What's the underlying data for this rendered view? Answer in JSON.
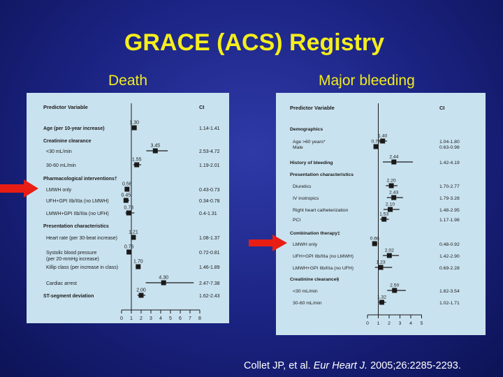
{
  "slide": {
    "title": "GRACE (ACS) Registry",
    "subtitle_left": "Death",
    "subtitle_right": "Major bleeding",
    "citation": {
      "authors": "Collet JP, et al.",
      "journal": "Eur Heart J.",
      "details": "2005;26:2285-2293."
    },
    "colors": {
      "background": "#1a2280",
      "title": "#f4ee1c",
      "panel": "#c9e2ef",
      "arrow": "#e81e14"
    }
  },
  "chart_data": [
    {
      "type": "forest",
      "column_headers": {
        "variable": "Predictor Variable",
        "ci": "CI"
      },
      "reference_line": 1,
      "xlim": [
        0,
        8
      ],
      "ticks": [
        "0",
        "1",
        "2",
        "3",
        "4",
        "5",
        "6",
        "7",
        "8"
      ],
      "rows": [
        {
          "label": "Age (per 10-year increase)",
          "bold": true,
          "value": 1.3,
          "value_label": "1.30",
          "ci_label": "1.14-1.41",
          "lo": 1.14,
          "hi": 1.41
        },
        {
          "label": "Creatinine clearance",
          "bold": true,
          "header": true
        },
        {
          "label": "<30 mL/min",
          "value": 3.45,
          "value_label": "3.45",
          "ci_label": "2.53-4.72",
          "lo": 2.53,
          "hi": 4.72
        },
        {
          "label": "30-60 mL/min",
          "value": 1.55,
          "value_label": "1.55",
          "ci_label": "1.19-2.01",
          "lo": 1.19,
          "hi": 2.01
        },
        {
          "label": "Pharmacological interventions†",
          "bold": true,
          "header": true
        },
        {
          "label": "LMWH only",
          "value": 0.56,
          "value_label": "0.56",
          "ci_label": "0.43-0.73",
          "lo": 0.43,
          "hi": 0.73
        },
        {
          "label": "UFH+GPI IIb/IIIa (no LMWH)",
          "value": 0.45,
          "value_label": "0.45",
          "ci_label": "0.34-0.78",
          "lo": 0.34,
          "hi": 0.78
        },
        {
          "label": "LMWH+GPI IIb/IIIa (no UFH)",
          "value": 0.73,
          "value_label": "0.73",
          "ci_label": "0.4-1.31",
          "lo": 0.4,
          "hi": 1.31
        },
        {
          "label": "Presentation characteristics",
          "bold": true,
          "header": true
        },
        {
          "label": "Heart rate (per 30-beat increase)",
          "value": 1.21,
          "value_label": "1.21",
          "ci_label": "1.08-1.37",
          "lo": 1.08,
          "hi": 1.37
        },
        {
          "label": "Systolic blood pressure",
          "label2": "(per 20-mmHg increase)",
          "value": 0.76,
          "value_label": "0.76",
          "ci_label": "0.72-0.81",
          "lo": 0.72,
          "hi": 0.81
        },
        {
          "label": "Killip class (per increase in class)",
          "value": 1.7,
          "value_label": "1.70",
          "ci_label": "1.46-1.89",
          "lo": 1.46,
          "hi": 1.89
        },
        {
          "label": "Cardiac arrest",
          "value": 4.3,
          "value_label": "4.30",
          "ci_label": "2.47-7.38",
          "lo": 2.47,
          "hi": 7.38
        },
        {
          "label": "ST-segment deviation",
          "bold": true,
          "value": 2.0,
          "value_label": "2.00",
          "ci_label": "1.62-2.43",
          "lo": 1.62,
          "hi": 2.43
        }
      ]
    },
    {
      "type": "forest",
      "column_headers": {
        "variable": "Predictor Variable",
        "ci": "CI"
      },
      "reference_line": 1,
      "xlim": [
        0,
        5
      ],
      "ticks": [
        "0",
        "1",
        "2",
        "3",
        "4",
        "5"
      ],
      "rows": [
        {
          "label": "Demographics",
          "bold": true,
          "header": true
        },
        {
          "label": "Age >60 years*",
          "value": 1.4,
          "value_label": "1.40",
          "ci_label": "1.04-1.80",
          "lo": 1.04,
          "hi": 1.8
        },
        {
          "label": "Male",
          "value": 0.78,
          "value_label": "0.78",
          "ci_label": "0.63-0.98",
          "lo": 0.63,
          "hi": 0.98
        },
        {
          "label": "History of bleeding",
          "bold": true,
          "value": 2.44,
          "value_label": "2.44",
          "ci_label": "1.42-4.19",
          "lo": 1.42,
          "hi": 4.19
        },
        {
          "label": "Presentation characteristics",
          "bold": true,
          "header": true
        },
        {
          "label": "Diuretics",
          "value": 2.2,
          "value_label": "2.20",
          "ci_label": "1.70-2.77",
          "lo": 1.7,
          "hi": 2.77
        },
        {
          "label": "IV inotropics",
          "value": 2.43,
          "value_label": "2.43",
          "ci_label": "1.79-3.28",
          "lo": 1.79,
          "hi": 3.28
        },
        {
          "label": "Right heart catheterization",
          "value": 2.1,
          "value_label": "2.10",
          "ci_label": "1.48-2.95",
          "lo": 1.48,
          "hi": 2.95
        },
        {
          "label": "PCI",
          "value": 1.53,
          "value_label": "1.53",
          "ci_label": "1.17-1.98",
          "lo": 1.17,
          "hi": 1.98
        },
        {
          "label": "Combination therapy‡",
          "bold": true,
          "header": true
        },
        {
          "label": "LMWH only",
          "value": 0.66,
          "value_label": "0.66",
          "ci_label": "0.48-0.92",
          "lo": 0.48,
          "hi": 0.92
        },
        {
          "label": "UFH+GPI IIb/IIIa (no LMWH)",
          "value": 2.02,
          "value_label": "2.02",
          "ci_label": "1.42-2.90",
          "lo": 1.42,
          "hi": 2.9
        },
        {
          "label": "LMWH+GPI IIb/IIIa (no UFH)",
          "value": 1.23,
          "value_label": "1.23",
          "ci_label": "0.69-2.28",
          "lo": 0.69,
          "hi": 2.28
        },
        {
          "label": "Creatinine clearance§",
          "bold": true,
          "header": true
        },
        {
          "label": "<30 mL/min",
          "value": 2.5,
          "value_label": "2.50",
          "ci_label": "1.82-3.54",
          "lo": 1.82,
          "hi": 3.54
        },
        {
          "label": "30-60 mL/min",
          "value": 1.32,
          "value_label": "1.32",
          "ci_label": "1.02-1.71",
          "lo": 1.02,
          "hi": 1.71
        }
      ]
    }
  ]
}
